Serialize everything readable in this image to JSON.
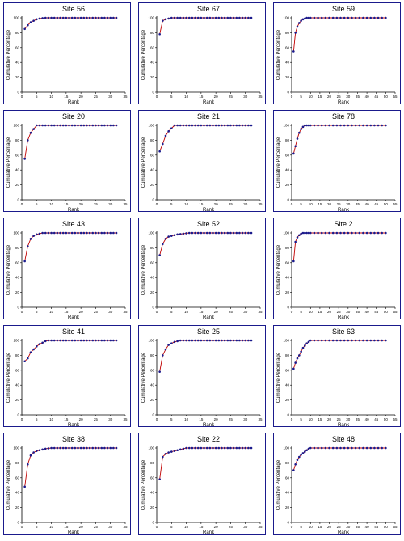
{
  "chart_data": [
    {
      "type": "line",
      "title": "Site 56",
      "xlabel": "Rank",
      "ylabel": "Cumulative Percentage",
      "xlim": [
        0,
        35
      ],
      "ylim": [
        0,
        100
      ],
      "x": [
        1,
        2,
        3,
        4,
        5,
        6,
        7,
        8,
        9,
        10,
        11,
        12,
        13,
        14,
        15,
        16,
        17,
        18,
        19,
        20,
        21,
        22,
        23,
        24,
        25,
        26,
        27,
        28,
        29,
        30,
        31,
        32
      ],
      "series": [
        {
          "values": [
            85,
            90,
            94,
            96,
            98,
            99,
            99.5,
            100,
            100,
            100,
            100,
            100,
            100,
            100,
            100,
            100,
            100,
            100,
            100,
            100,
            100,
            100,
            100,
            100,
            100,
            100,
            100,
            100,
            100,
            100,
            100,
            100
          ]
        }
      ]
    },
    {
      "type": "line",
      "title": "Site 67",
      "xlabel": "Rank",
      "ylabel": "Cumulative Percentage",
      "xlim": [
        0,
        35
      ],
      "ylim": [
        0,
        100
      ],
      "x": [
        1,
        2,
        3,
        4,
        5,
        6,
        7,
        8,
        9,
        10,
        11,
        12,
        13,
        14,
        15,
        16,
        17,
        18,
        19,
        20,
        21,
        22,
        23,
        24,
        25,
        26,
        27,
        28,
        29,
        30,
        31,
        32
      ],
      "series": [
        {
          "values": [
            78,
            96,
            98,
            99,
            100,
            100,
            100,
            100,
            100,
            100,
            100,
            100,
            100,
            100,
            100,
            100,
            100,
            100,
            100,
            100,
            100,
            100,
            100,
            100,
            100,
            100,
            100,
            100,
            100,
            100,
            100,
            100
          ]
        }
      ]
    },
    {
      "type": "line",
      "title": "Site 59",
      "xlabel": "Rank",
      "ylabel": "Cumulative Percentage",
      "xlim": [
        0,
        55
      ],
      "ylim": [
        0,
        100
      ],
      "x": [
        1,
        2,
        3,
        4,
        5,
        6,
        7,
        8,
        9,
        10,
        12,
        14,
        16,
        18,
        20,
        22,
        24,
        26,
        28,
        30,
        32,
        34,
        36,
        38,
        40,
        42,
        44,
        46,
        48,
        50
      ],
      "series": [
        {
          "values": [
            55,
            80,
            88,
            93,
            96,
            98,
            99,
            100,
            100,
            100,
            100,
            100,
            100,
            100,
            100,
            100,
            100,
            100,
            100,
            100,
            100,
            100,
            100,
            100,
            100,
            100,
            100,
            100,
            100,
            100
          ]
        }
      ]
    },
    {
      "type": "line",
      "title": "Site 20",
      "xlabel": "Rank",
      "ylabel": "Cumulative Percentage",
      "xlim": [
        0,
        35
      ],
      "ylim": [
        0,
        100
      ],
      "x": [
        1,
        2,
        3,
        4,
        5,
        6,
        7,
        8,
        9,
        10,
        11,
        12,
        13,
        14,
        15,
        16,
        17,
        18,
        19,
        20,
        21,
        22,
        23,
        24,
        25,
        26,
        27,
        28,
        29,
        30,
        31,
        32
      ],
      "series": [
        {
          "values": [
            55,
            80,
            90,
            95,
            100,
            100,
            100,
            100,
            100,
            100,
            100,
            100,
            100,
            100,
            100,
            100,
            100,
            100,
            100,
            100,
            100,
            100,
            100,
            100,
            100,
            100,
            100,
            100,
            100,
            100,
            100,
            100
          ]
        }
      ]
    },
    {
      "type": "line",
      "title": "Site 21",
      "xlabel": "Rank",
      "ylabel": "Cumulative Percentage",
      "xlim": [
        0,
        35
      ],
      "ylim": [
        0,
        100
      ],
      "x": [
        1,
        2,
        3,
        4,
        5,
        6,
        7,
        8,
        9,
        10,
        11,
        12,
        13,
        14,
        15,
        16,
        17,
        18,
        19,
        20,
        21,
        22,
        23,
        24,
        25,
        26,
        27,
        28,
        29,
        30,
        31,
        32
      ],
      "series": [
        {
          "values": [
            65,
            75,
            86,
            92,
            96,
            100,
            100,
            100,
            100,
            100,
            100,
            100,
            100,
            100,
            100,
            100,
            100,
            100,
            100,
            100,
            100,
            100,
            100,
            100,
            100,
            100,
            100,
            100,
            100,
            100,
            100,
            100
          ]
        }
      ]
    },
    {
      "type": "line",
      "title": "Site 78",
      "xlabel": "Rank",
      "ylabel": "Cumulative Percentage",
      "xlim": [
        0,
        55
      ],
      "ylim": [
        0,
        100
      ],
      "x": [
        1,
        2,
        3,
        4,
        5,
        6,
        7,
        8,
        9,
        10,
        12,
        14,
        16,
        18,
        20,
        22,
        24,
        26,
        28,
        30,
        32,
        34,
        36,
        38,
        40,
        42,
        44,
        46,
        48,
        50
      ],
      "series": [
        {
          "values": [
            62,
            72,
            82,
            90,
            95,
            98,
            100,
            100,
            100,
            100,
            100,
            100,
            100,
            100,
            100,
            100,
            100,
            100,
            100,
            100,
            100,
            100,
            100,
            100,
            100,
            100,
            100,
            100,
            100,
            100
          ]
        }
      ]
    },
    {
      "type": "line",
      "title": "Site 43",
      "xlabel": "Rank",
      "ylabel": "Cumulative Percentage",
      "xlim": [
        0,
        35
      ],
      "ylim": [
        0,
        100
      ],
      "x": [
        1,
        2,
        3,
        4,
        5,
        6,
        7,
        8,
        9,
        10,
        11,
        12,
        13,
        14,
        15,
        16,
        17,
        18,
        19,
        20,
        21,
        22,
        23,
        24,
        25,
        26,
        27,
        28,
        29,
        30,
        31,
        32
      ],
      "series": [
        {
          "values": [
            62,
            82,
            92,
            96,
            98,
            99,
            100,
            100,
            100,
            100,
            100,
            100,
            100,
            100,
            100,
            100,
            100,
            100,
            100,
            100,
            100,
            100,
            100,
            100,
            100,
            100,
            100,
            100,
            100,
            100,
            100,
            100
          ]
        }
      ]
    },
    {
      "type": "line",
      "title": "Site 52",
      "xlabel": "Rank",
      "ylabel": "Cumulative Percentage",
      "xlim": [
        0,
        35
      ],
      "ylim": [
        0,
        100
      ],
      "x": [
        1,
        2,
        3,
        4,
        5,
        6,
        7,
        8,
        9,
        10,
        11,
        12,
        13,
        14,
        15,
        16,
        17,
        18,
        19,
        20,
        21,
        22,
        23,
        24,
        25,
        26,
        27,
        28,
        29,
        30,
        31,
        32
      ],
      "series": [
        {
          "values": [
            70,
            85,
            92,
            95,
            96,
            97,
            98,
            98.5,
            99,
            99.5,
            100,
            100,
            100,
            100,
            100,
            100,
            100,
            100,
            100,
            100,
            100,
            100,
            100,
            100,
            100,
            100,
            100,
            100,
            100,
            100,
            100,
            100
          ]
        }
      ]
    },
    {
      "type": "line",
      "title": "Site 2",
      "xlabel": "Rank",
      "ylabel": "Cumulative Percentage",
      "xlim": [
        0,
        55
      ],
      "ylim": [
        0,
        100
      ],
      "x": [
        1,
        2,
        3,
        4,
        5,
        6,
        7,
        8,
        9,
        10,
        12,
        14,
        16,
        18,
        20,
        22,
        24,
        26,
        28,
        30,
        32,
        34,
        36,
        38,
        40,
        42,
        44,
        46,
        48,
        50
      ],
      "series": [
        {
          "values": [
            62,
            88,
            94,
            97,
            99,
            100,
            100,
            100,
            100,
            100,
            100,
            100,
            100,
            100,
            100,
            100,
            100,
            100,
            100,
            100,
            100,
            100,
            100,
            100,
            100,
            100,
            100,
            100,
            100,
            100
          ]
        }
      ]
    },
    {
      "type": "line",
      "title": "Site 41",
      "xlabel": "Rank",
      "ylabel": "Cumulative Percentage",
      "xlim": [
        0,
        35
      ],
      "ylim": [
        0,
        100
      ],
      "x": [
        1,
        2,
        3,
        4,
        5,
        6,
        7,
        8,
        9,
        10,
        11,
        12,
        13,
        14,
        15,
        16,
        17,
        18,
        19,
        20,
        21,
        22,
        23,
        24,
        25,
        26,
        27,
        28,
        29,
        30,
        31,
        32
      ],
      "series": [
        {
          "values": [
            72,
            76,
            84,
            88,
            92,
            95,
            97,
            99,
            100,
            100,
            100,
            100,
            100,
            100,
            100,
            100,
            100,
            100,
            100,
            100,
            100,
            100,
            100,
            100,
            100,
            100,
            100,
            100,
            100,
            100,
            100,
            100
          ]
        }
      ]
    },
    {
      "type": "line",
      "title": "Site 25",
      "xlabel": "Rank",
      "ylabel": "Cumulative Percentage",
      "xlim": [
        0,
        35
      ],
      "ylim": [
        0,
        100
      ],
      "x": [
        1,
        2,
        3,
        4,
        5,
        6,
        7,
        8,
        9,
        10,
        11,
        12,
        13,
        14,
        15,
        16,
        17,
        18,
        19,
        20,
        21,
        22,
        23,
        24,
        25,
        26,
        27,
        28,
        29,
        30,
        31,
        32
      ],
      "series": [
        {
          "values": [
            58,
            80,
            88,
            94,
            96,
            98,
            99,
            100,
            100,
            100,
            100,
            100,
            100,
            100,
            100,
            100,
            100,
            100,
            100,
            100,
            100,
            100,
            100,
            100,
            100,
            100,
            100,
            100,
            100,
            100,
            100,
            100
          ]
        }
      ]
    },
    {
      "type": "line",
      "title": "Site 63",
      "xlabel": "Rank",
      "ylabel": "Cumulative Percentage",
      "xlim": [
        0,
        55
      ],
      "ylim": [
        0,
        100
      ],
      "x": [
        1,
        2,
        3,
        4,
        5,
        6,
        7,
        8,
        9,
        10,
        12,
        14,
        16,
        18,
        20,
        22,
        24,
        26,
        28,
        30,
        32,
        34,
        36,
        38,
        40,
        42,
        44,
        46,
        48,
        50
      ],
      "series": [
        {
          "values": [
            62,
            70,
            76,
            80,
            85,
            90,
            93,
            96,
            98,
            100,
            100,
            100,
            100,
            100,
            100,
            100,
            100,
            100,
            100,
            100,
            100,
            100,
            100,
            100,
            100,
            100,
            100,
            100,
            100,
            100
          ]
        }
      ]
    },
    {
      "type": "line",
      "title": "Site 38",
      "xlabel": "Rank",
      "ylabel": "Cumulative Percentage",
      "xlim": [
        0,
        35
      ],
      "ylim": [
        0,
        100
      ],
      "x": [
        1,
        2,
        3,
        4,
        5,
        6,
        7,
        8,
        9,
        10,
        11,
        12,
        13,
        14,
        15,
        16,
        17,
        18,
        19,
        20,
        21,
        22,
        23,
        24,
        25,
        26,
        27,
        28,
        29,
        30,
        31,
        32
      ],
      "series": [
        {
          "values": [
            48,
            78,
            90,
            94,
            96,
            97,
            98,
            99,
            99.5,
            100,
            100,
            100,
            100,
            100,
            100,
            100,
            100,
            100,
            100,
            100,
            100,
            100,
            100,
            100,
            100,
            100,
            100,
            100,
            100,
            100,
            100,
            100
          ]
        }
      ]
    },
    {
      "type": "line",
      "title": "Site 22",
      "xlabel": "Rank",
      "ylabel": "Cumulative Percentage",
      "xlim": [
        0,
        35
      ],
      "ylim": [
        0,
        100
      ],
      "x": [
        1,
        2,
        3,
        4,
        5,
        6,
        7,
        8,
        9,
        10,
        11,
        12,
        13,
        14,
        15,
        16,
        17,
        18,
        19,
        20,
        21,
        22,
        23,
        24,
        25,
        26,
        27,
        28,
        29,
        30,
        31,
        32
      ],
      "series": [
        {
          "values": [
            58,
            88,
            92,
            94,
            95,
            96,
            97,
            98,
            99,
            100,
            100,
            100,
            100,
            100,
            100,
            100,
            100,
            100,
            100,
            100,
            100,
            100,
            100,
            100,
            100,
            100,
            100,
            100,
            100,
            100,
            100,
            100
          ]
        }
      ]
    },
    {
      "type": "line",
      "title": "Site 48",
      "xlabel": "Rank",
      "ylabel": "Cumulative Percentage",
      "xlim": [
        0,
        55
      ],
      "ylim": [
        0,
        100
      ],
      "x": [
        1,
        2,
        3,
        4,
        5,
        6,
        7,
        8,
        9,
        10,
        12,
        14,
        16,
        18,
        20,
        22,
        24,
        26,
        28,
        30,
        32,
        34,
        36,
        38,
        40,
        42,
        44,
        46,
        48,
        50
      ],
      "series": [
        {
          "values": [
            70,
            78,
            84,
            88,
            91,
            93,
            95,
            97,
            99,
            100,
            100,
            100,
            100,
            100,
            100,
            100,
            100,
            100,
            100,
            100,
            100,
            100,
            100,
            100,
            100,
            100,
            100,
            100,
            100,
            100
          ]
        }
      ]
    }
  ],
  "style": {
    "border": "#1a1a8c",
    "marker": "#1a1a8c",
    "line": "#c00000",
    "axis": "#000000"
  },
  "yticks": [
    0,
    20,
    40,
    60,
    80,
    100
  ]
}
